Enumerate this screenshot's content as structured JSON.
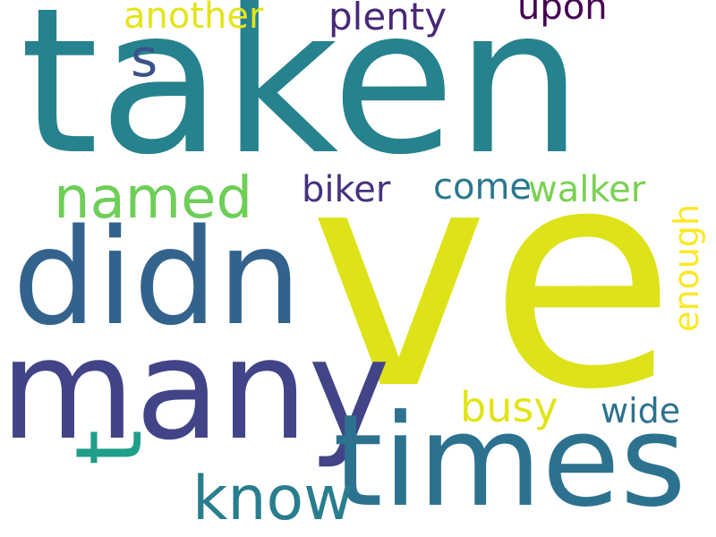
{
  "words": [
    {
      "text": "taken",
      "color": "#26828e"
    },
    {
      "text": "ve",
      "color": "#dde318"
    },
    {
      "text": "didn",
      "color": "#33638d"
    },
    {
      "text": "many",
      "color": "#414487"
    },
    {
      "text": "times",
      "color": "#2c728e"
    },
    {
      "text": "know",
      "color": "#287d8e"
    },
    {
      "text": "t",
      "color": "#1f9e89"
    },
    {
      "text": "named",
      "color": "#6ece58"
    },
    {
      "text": "another",
      "color": "#e5e419"
    },
    {
      "text": "plenty",
      "color": "#482878"
    },
    {
      "text": "upon",
      "color": "#440154"
    },
    {
      "text": "s",
      "color": "#3b528b"
    },
    {
      "text": "biker",
      "color": "#46327e"
    },
    {
      "text": "come",
      "color": "#2a788e"
    },
    {
      "text": "walker",
      "color": "#7ad151"
    },
    {
      "text": "enough",
      "color": "#fde725"
    },
    {
      "text": "busy",
      "color": "#e2e418"
    },
    {
      "text": "wide",
      "color": "#2c728e"
    }
  ]
}
